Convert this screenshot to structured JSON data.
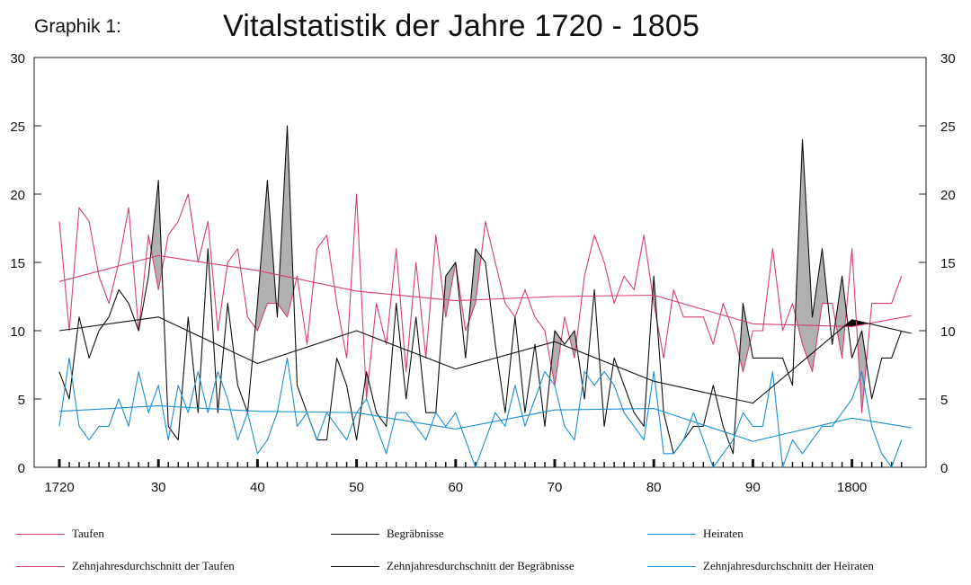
{
  "header": {
    "label": "Graphik 1:",
    "title": "Vitalstatistik der Jahre 1720 - 1805"
  },
  "colors": {
    "taufen": "#d43f77",
    "begraebnisse": "#111111",
    "heiraten": "#1b8fd1",
    "overlap_fill": "#b0b0b0",
    "burial_excess_fill": "#000000"
  },
  "legend": [
    {
      "label": "Taufen",
      "color": "#d43f77"
    },
    {
      "label": "Begräbnisse",
      "color": "#111111"
    },
    {
      "label": "Heiraten",
      "color": "#1b8fd1"
    },
    {
      "label": "Zehnjahresdurchschnitt der Taufen",
      "color": "#d43f77"
    },
    {
      "label": "Zehnjahresdurchschnitt der Begräbnisse",
      "color": "#111111"
    },
    {
      "label": "Zehnjahresdurchschnitt der Heiraten",
      "color": "#1b8fd1"
    }
  ],
  "chart_data": {
    "type": "line",
    "title": "Vitalstatistik der Jahre 1720 - 1805",
    "xlabel": "",
    "ylabel": "",
    "ylim": [
      0,
      30
    ],
    "xlim": [
      1719,
      1806
    ],
    "y_ticks": [
      0,
      5,
      10,
      15,
      20,
      25,
      30
    ],
    "x_tick_labels": [
      {
        "year": 1720,
        "label": "1720"
      },
      {
        "year": 1730,
        "label": "30"
      },
      {
        "year": 1740,
        "label": "40"
      },
      {
        "year": 1750,
        "label": "50"
      },
      {
        "year": 1760,
        "label": "60"
      },
      {
        "year": 1770,
        "label": "70"
      },
      {
        "year": 1780,
        "label": "80"
      },
      {
        "year": 1790,
        "label": "90"
      },
      {
        "year": 1800,
        "label": "1800"
      }
    ],
    "grid": false,
    "legend_position": "bottom",
    "x": [
      1720,
      1721,
      1722,
      1723,
      1724,
      1725,
      1726,
      1727,
      1728,
      1729,
      1730,
      1731,
      1732,
      1733,
      1734,
      1735,
      1736,
      1737,
      1738,
      1739,
      1740,
      1741,
      1742,
      1743,
      1744,
      1745,
      1746,
      1747,
      1748,
      1749,
      1750,
      1751,
      1752,
      1753,
      1754,
      1755,
      1756,
      1757,
      1758,
      1759,
      1760,
      1761,
      1762,
      1763,
      1764,
      1765,
      1766,
      1767,
      1768,
      1769,
      1770,
      1771,
      1772,
      1773,
      1774,
      1775,
      1776,
      1777,
      1778,
      1779,
      1780,
      1781,
      1782,
      1783,
      1784,
      1785,
      1786,
      1787,
      1788,
      1789,
      1790,
      1791,
      1792,
      1793,
      1794,
      1795,
      1796,
      1797,
      1798,
      1799,
      1800,
      1801,
      1802,
      1803,
      1804,
      1805
    ],
    "series": [
      {
        "name": "Taufen",
        "color": "#d43f77",
        "values": [
          18,
          10,
          19,
          18,
          14,
          12,
          15,
          19,
          10,
          17,
          13,
          17,
          18,
          20,
          15,
          18,
          10,
          15,
          16,
          11,
          10,
          12,
          12,
          11,
          14,
          9,
          16,
          17,
          12,
          8,
          20,
          5,
          12,
          9,
          16,
          7,
          15,
          8,
          17,
          11,
          15,
          10,
          12,
          18,
          15,
          12,
          11,
          13,
          11,
          10,
          6,
          11,
          8,
          14,
          17,
          15,
          12,
          14,
          13,
          17,
          12,
          8,
          13,
          11,
          11,
          11,
          9,
          12,
          10,
          7,
          10,
          10,
          16,
          10,
          12,
          9,
          7,
          12,
          12,
          8,
          16,
          4,
          12,
          12,
          12,
          14
        ]
      },
      {
        "name": "Begräbnisse",
        "color": "#111111",
        "values": [
          7,
          5,
          11,
          8,
          10,
          11,
          13,
          12,
          10,
          14,
          21,
          3,
          2,
          11,
          4,
          16,
          4,
          12,
          6,
          4,
          12,
          21,
          11,
          25,
          6,
          4,
          2,
          2,
          8,
          6,
          2,
          7,
          4,
          3,
          12,
          5,
          11,
          4,
          4,
          14,
          15,
          8,
          16,
          15,
          9,
          4,
          11,
          4,
          9,
          3,
          10,
          9,
          10,
          5,
          13,
          3,
          8,
          6,
          4,
          3,
          14,
          4,
          1,
          2,
          3,
          3,
          6,
          3,
          1,
          12,
          8,
          8,
          8,
          8,
          6,
          24,
          11,
          16,
          9,
          14,
          8,
          10,
          5,
          8,
          8,
          10
        ]
      },
      {
        "name": "Heiraten",
        "color": "#1b8fd1",
        "values": [
          3,
          8,
          3,
          2,
          3,
          3,
          5,
          3,
          7,
          4,
          6,
          2,
          6,
          4,
          7,
          4,
          7,
          5,
          2,
          4,
          1,
          2,
          4,
          8,
          3,
          4,
          2,
          4,
          3,
          2,
          4,
          5,
          3,
          1,
          4,
          4,
          3,
          2,
          4,
          3,
          4,
          2,
          0,
          2,
          4,
          3,
          6,
          3,
          5,
          7,
          6,
          3,
          2,
          7,
          6,
          7,
          6,
          4,
          3,
          2,
          7,
          1,
          1,
          2,
          4,
          2,
          0,
          1,
          2,
          4,
          3,
          3,
          7,
          0,
          2,
          1,
          2,
          3,
          3,
          4,
          5,
          7,
          3,
          1,
          0,
          2
        ]
      },
      {
        "name": "Zehnjahresdurchschnitt der Taufen",
        "color": "#d43f77",
        "x": [
          1720,
          1730,
          1740,
          1750,
          1760,
          1770,
          1780,
          1790,
          1800,
          1806
        ],
        "values": [
          13.6,
          15.5,
          14.4,
          12.9,
          12.2,
          12.5,
          12.6,
          10.5,
          10.3,
          11.1
        ]
      },
      {
        "name": "Zehnjahresdurchschnitt der Begräbnisse",
        "color": "#111111",
        "x": [
          1720,
          1730,
          1740,
          1750,
          1760,
          1770,
          1780,
          1790,
          1800,
          1806
        ],
        "values": [
          10,
          11,
          7.6,
          10,
          7.2,
          9.2,
          6.3,
          4.7,
          10.8,
          9.8
        ]
      },
      {
        "name": "Zehnjahresdurchschnitt der Heiraten",
        "color": "#1b8fd1",
        "x": [
          1720,
          1730,
          1740,
          1750,
          1760,
          1770,
          1780,
          1790,
          1800,
          1806
        ],
        "values": [
          4.1,
          4.5,
          4.1,
          4.0,
          2.8,
          4.2,
          4.3,
          1.9,
          3.6,
          2.9
        ]
      }
    ]
  }
}
